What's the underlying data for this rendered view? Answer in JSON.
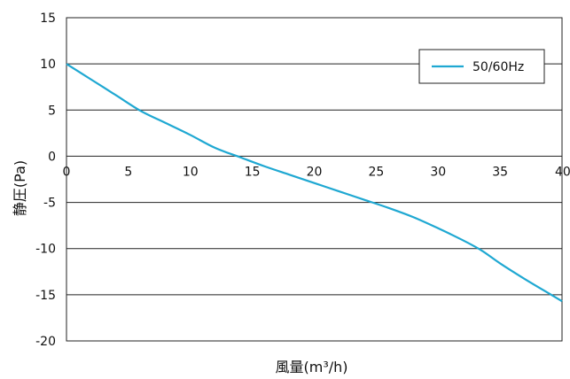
{
  "chart_data": {
    "type": "line",
    "xlabel": "風量(m³/h)",
    "ylabel": "静圧(Pa)",
    "xlim": [
      0,
      40
    ],
    "ylim": [
      -20,
      15
    ],
    "x_ticks": [
      "0",
      "5",
      "10",
      "15",
      "20",
      "25",
      "30",
      "35",
      "40"
    ],
    "y_ticks": [
      "15",
      "10",
      "5",
      "0",
      "-5",
      "-10",
      "-15",
      "-20"
    ],
    "grid": "horizontal",
    "legend_position": "top-right",
    "series": [
      {
        "name": "50/60Hz",
        "color": "#1fa8d2",
        "x": [
          0,
          2,
          4,
          6,
          8,
          10,
          12,
          14,
          16,
          18,
          20,
          22,
          24,
          26,
          28,
          30,
          32,
          33.5,
          35,
          37,
          39,
          40
        ],
        "y": [
          10,
          8.3,
          6.6,
          4.9,
          3.6,
          2.3,
          0.9,
          -0.1,
          -1.1,
          -2,
          -2.9,
          -3.8,
          -4.7,
          -5.6,
          -6.6,
          -7.8,
          -9.1,
          -10.2,
          -11.6,
          -13.3,
          -14.9,
          -15.7
        ]
      }
    ]
  }
}
